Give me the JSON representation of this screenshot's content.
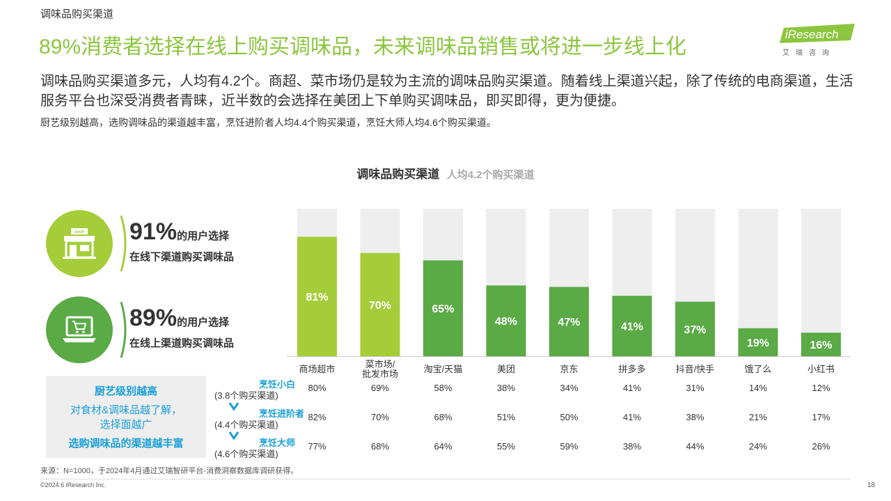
{
  "section_label": "调味品购买渠道",
  "headline": "89%消费者选择在线上购买调味品，未来调味品销售或将进一步线上化",
  "logo": {
    "brand": "iResearch",
    "subtitle": "艾瑞咨询"
  },
  "summary": "调味品购买渠道多元，人均有4.2个。商超、菜市场仍是较为主流的调味品购买渠道。随着线上渠道兴起，除了传统的电商渠道，生活服务平台也深受消费者青睐，近半数的会选择在美团上下单购买调味品，即买即得，更为便捷。",
  "detail": "厨艺级别越高，选购调味品的渠道越丰富，烹饪进阶者人均4.4个购买渠道，烹饪大师人均4.6个购买渠道。",
  "callouts": [
    {
      "pct": "91%",
      "suffix": "的用户选择",
      "line2": "在线下渠道购买调味品",
      "icon": "shop-icon",
      "color": "#a5cd39"
    },
    {
      "pct": "89%",
      "suffix": "的用户选择",
      "line2": "在线上渠道购买调味品",
      "icon": "laptop-cart-icon",
      "color": "#5aaa46"
    }
  ],
  "side_box": {
    "title": "厨艺级别越高",
    "line1": "对食材&调味品越了解，",
    "line2": "选择面越广",
    "line3": "选购调味品的渠道越丰富"
  },
  "groups": [
    {
      "name": "烹饪小白",
      "sub": "(3.8个购买渠道)"
    },
    {
      "name": "烹饪进阶者",
      "sub": "(4.4个购买渠道)"
    },
    {
      "name": "烹饪大师",
      "sub": "(4.6个购买渠道)"
    }
  ],
  "chart_data": {
    "type": "bar",
    "title": "调味品购买渠道",
    "subtitle": "人均4.2个购买渠道",
    "categories": [
      "商场超市",
      "菜市场/批发市场",
      "淘宝/天猫",
      "美团",
      "京东",
      "拼多多",
      "抖音/快手",
      "饿了么",
      "小红书"
    ],
    "values": [
      81,
      70,
      65,
      48,
      47,
      41,
      37,
      19,
      16
    ],
    "value_labels": [
      "81%",
      "70%",
      "65%",
      "48%",
      "47%",
      "41%",
      "37%",
      "19%",
      "16%"
    ],
    "bar_colors": [
      "#a5cd39",
      "#a5cd39",
      "#5aaa46",
      "#5aaa46",
      "#5aaa46",
      "#5aaa46",
      "#5aaa46",
      "#5aaa46",
      "#5aaa46"
    ],
    "background_color": "#eeeeee",
    "ylim": [
      0,
      100
    ],
    "series": [
      {
        "name": "烹饪小白",
        "values": [
          "80%",
          "69%",
          "58%",
          "38%",
          "34%",
          "41%",
          "31%",
          "14%",
          "12%"
        ]
      },
      {
        "name": "烹饪进阶者",
        "values": [
          "82%",
          "70%",
          "68%",
          "51%",
          "50%",
          "41%",
          "38%",
          "21%",
          "17%"
        ]
      },
      {
        "name": "烹饪大师",
        "values": [
          "77%",
          "68%",
          "64%",
          "55%",
          "59%",
          "38%",
          "44%",
          "24%",
          "26%"
        ]
      }
    ]
  },
  "footer": {
    "source": "来源：N=1000，于2024年4月通过艾瑞智研平台-消费洞察数据库调研获得。",
    "copyright": "©2024.6 iResearch Inc.",
    "page": "18"
  }
}
